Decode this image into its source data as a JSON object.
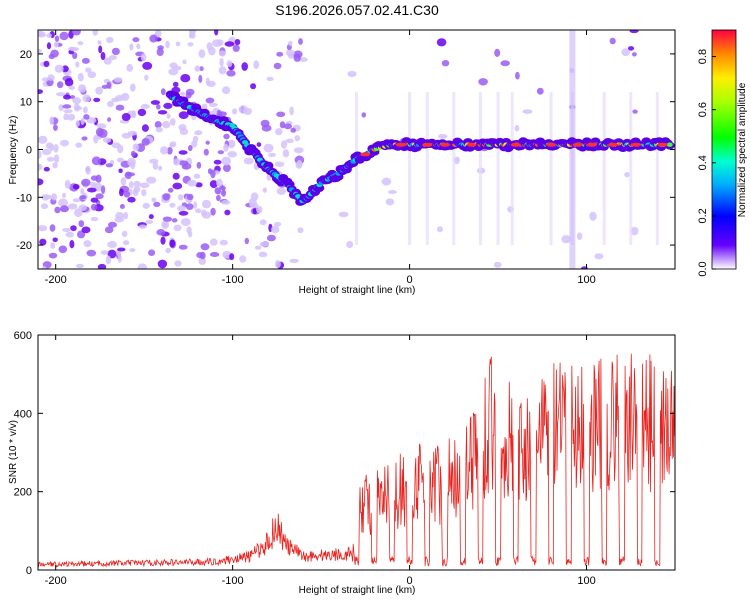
{
  "chart_data": [
    {
      "type": "heatmap",
      "title": "S196.2026.057.02.41.C30",
      "xlabel": "Height of straight line (km)",
      "ylabel": "Frequency (Hz)",
      "xlim": [
        -210,
        150
      ],
      "ylim": [
        -25,
        25
      ],
      "xticks": [
        -200,
        -100,
        0,
        100
      ],
      "yticks": [
        -20,
        -10,
        0,
        10,
        20
      ],
      "colorbar": {
        "label": "Normalized spectral amplitude",
        "range": [
          0.0,
          0.9
        ],
        "ticks": [
          0.0,
          0.2,
          0.4,
          0.6,
          0.8
        ]
      },
      "ridge": {
        "x": [
          -210,
          -150,
          -130,
          -110,
          -100,
          -90,
          -80,
          -70,
          -60,
          -50,
          -45,
          -40,
          -30,
          -20,
          -10,
          0,
          50,
          100,
          150
        ],
        "y": [
          20,
          15,
          10,
          6,
          5,
          0,
          -4,
          -7,
          -11,
          -7,
          -6,
          -5,
          -2,
          0,
          1,
          1,
          1,
          1,
          1
        ]
      }
    },
    {
      "type": "line",
      "xlabel": "Height of straight line (km)",
      "ylabel": "SNR (10 * v/v)",
      "xlim": [
        -210,
        150
      ],
      "ylim": [
        0,
        600
      ],
      "xticks": [
        -200,
        -100,
        0,
        100
      ],
      "yticks": [
        0,
        200,
        400,
        600
      ],
      "color": "#e8231f",
      "envelope": {
        "x": [
          -210,
          -110,
          -90,
          -80,
          -75,
          -70,
          -60,
          -32,
          -28,
          -20,
          -10,
          0,
          10,
          20,
          30,
          40,
          45,
          50,
          60,
          70,
          80,
          90,
          100,
          110,
          120,
          130,
          140,
          150
        ],
        "y": [
          20,
          30,
          50,
          100,
          170,
          90,
          50,
          60,
          260,
          250,
          280,
          320,
          350,
          320,
          390,
          460,
          560,
          500,
          470,
          480,
          540,
          520,
          560,
          540,
          560,
          560,
          550,
          520
        ]
      }
    }
  ]
}
